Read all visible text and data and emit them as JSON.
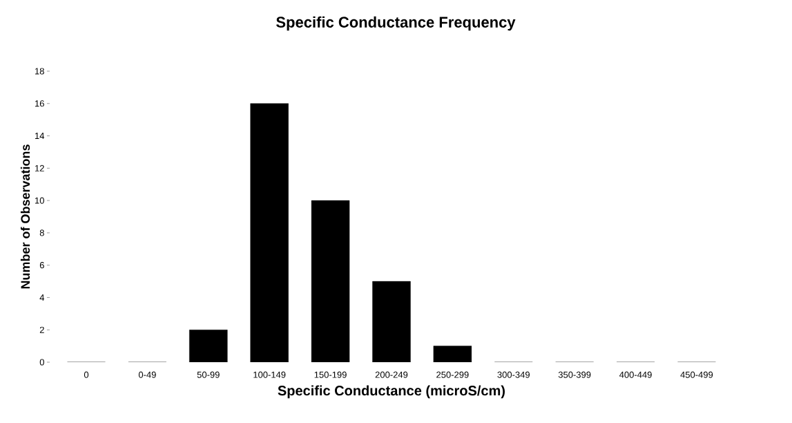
{
  "chart_data": {
    "type": "bar",
    "title": "Specific Conductance Frequency",
    "xlabel": "Specific Conductance (microS/cm)",
    "ylabel": "Number of Observations",
    "categories": [
      "0",
      "0-49",
      "50-99",
      "100-149",
      "150-199",
      "200-249",
      "250-299",
      "300-349",
      "350-399",
      "400-449",
      "450-499"
    ],
    "values": [
      0,
      0,
      2,
      16,
      10,
      5,
      1,
      0,
      0,
      0,
      0
    ],
    "color": "#000000",
    "ylim": [
      0,
      18
    ],
    "yticks": [
      0,
      2,
      4,
      6,
      8,
      10,
      12,
      14,
      16,
      18
    ],
    "grid": false
  }
}
